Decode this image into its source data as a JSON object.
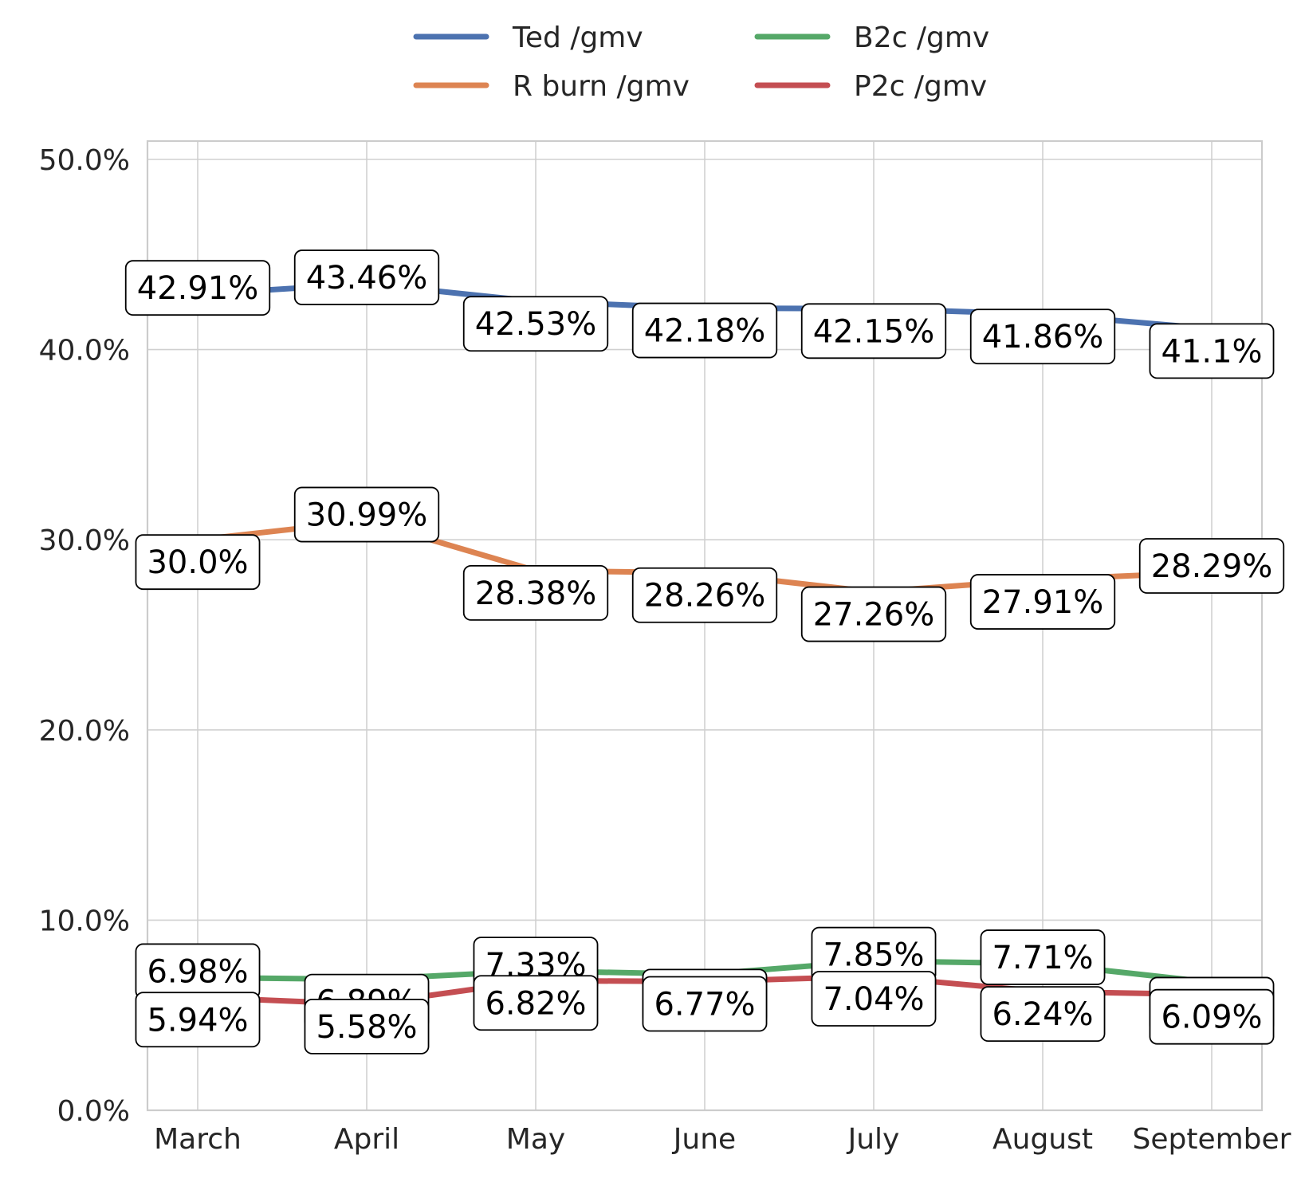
{
  "chart_data": {
    "type": "line",
    "categories": [
      "March",
      "April",
      "May",
      "June",
      "July",
      "August",
      "September"
    ],
    "ylim": [
      0,
      0.5
    ],
    "yticks": [
      0.0,
      0.1,
      0.2,
      0.3,
      0.4,
      0.5
    ],
    "ytick_labels": [
      "0.0%",
      "10.0%",
      "20.0%",
      "30.0%",
      "40.0%",
      "50.0%"
    ],
    "grid": true,
    "legend": {
      "placement": "top-center",
      "columns": 2
    },
    "series": [
      {
        "name": "Ted /gmv",
        "color": "#4C72B0",
        "values": [
          0.4291,
          0.4346,
          0.4253,
          0.4218,
          0.4215,
          0.4186,
          0.411
        ],
        "labels": [
          "42.91%",
          "43.46%",
          "42.53%",
          "42.18%",
          "42.15%",
          "41.86%",
          "41.1%"
        ],
        "label_position": [
          "above",
          "above",
          "below",
          "below",
          "below",
          "below",
          "below"
        ]
      },
      {
        "name": "R burn /gmv",
        "color": "#DD8452",
        "values": [
          0.3,
          0.3099,
          0.2838,
          0.2826,
          0.2726,
          0.2791,
          0.2829
        ],
        "labels": [
          "30.0%",
          "30.99%",
          "28.38%",
          "28.26%",
          "27.26%",
          "27.91%",
          "28.29%"
        ],
        "label_position": [
          "below",
          "above",
          "below",
          "below",
          "below",
          "below",
          "above"
        ]
      },
      {
        "name": "B2c /gmv",
        "color": "#55A868",
        "values": [
          0.0698,
          0.0689,
          0.0733,
          0.0715,
          0.0785,
          0.0771,
          0.0673
        ],
        "labels": [
          "6.98%",
          "6.89%",
          "7.33%",
          "7.15%",
          "7.85%",
          "7.71%",
          "6.73%"
        ],
        "label_position": [
          "above",
          "below",
          "above",
          "below",
          "above",
          "above",
          "below"
        ]
      },
      {
        "name": "P2c /gmv",
        "color": "#C44E52",
        "values": [
          0.0594,
          0.0558,
          0.0682,
          0.0677,
          0.0704,
          0.0624,
          0.0609
        ],
        "labels": [
          "5.94%",
          "5.58%",
          "6.82%",
          "6.77%",
          "7.04%",
          "6.24%",
          "6.09%"
        ],
        "label_position": [
          "below",
          "below",
          "below",
          "below",
          "below",
          "below",
          "below"
        ]
      }
    ]
  }
}
